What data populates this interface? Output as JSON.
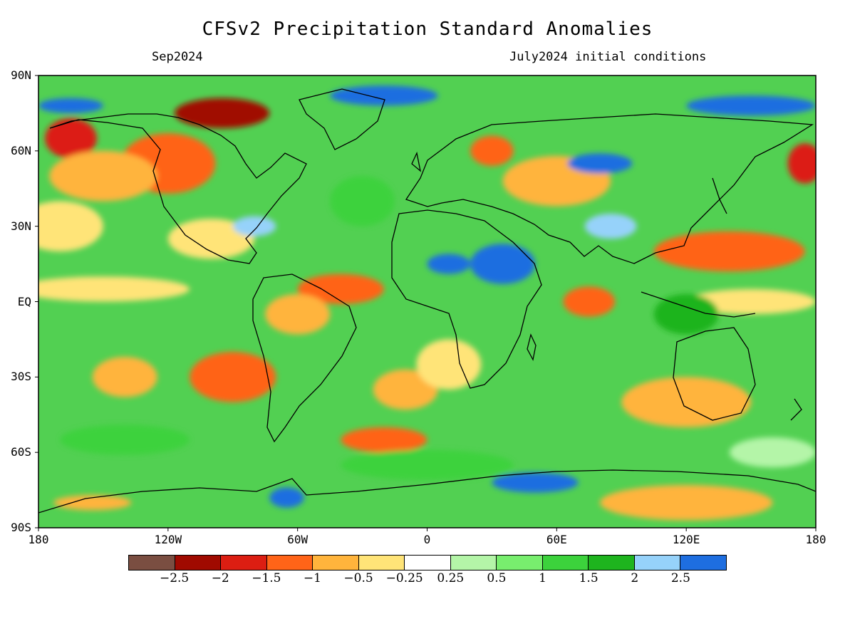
{
  "title": "CFSv2 Precipitation Standard Anomalies",
  "subtitle_left": "Sep2024",
  "subtitle_right": "July2024 initial conditions",
  "map": {
    "projection": "equirectangular",
    "lon_range": [
      -180,
      180
    ],
    "lat_range": [
      -90,
      90
    ],
    "lat_labels": [
      "90N",
      "60N",
      "30N",
      "EQ",
      "30S",
      "60S",
      "90S"
    ],
    "lat_values": [
      90,
      60,
      30,
      0,
      -30,
      -60,
      -90
    ],
    "lon_labels": [
      "180",
      "120W",
      "60W",
      "0",
      "60E",
      "120E",
      "180"
    ],
    "lon_values": [
      -180,
      -120,
      -60,
      0,
      60,
      120,
      180
    ],
    "ocean_background_color": "#52d052",
    "coastline_color": "#000000"
  },
  "colorbar": {
    "colors": [
      "#7a4e41",
      "#a00a00",
      "#dc1e12",
      "#ff6418",
      "#ffb43c",
      "#ffe478",
      "#ffffff",
      "#b4f5a8",
      "#78ee6e",
      "#3cd23c",
      "#1eb41e",
      "#96d2fa",
      "#1e6ee0"
    ],
    "labels": [
      "−2.5",
      "−2",
      "−1.5",
      "−1",
      "−0.5",
      "−0.25",
      "0.25",
      "0.5",
      "1",
      "1.5",
      "2",
      "2.5"
    ]
  },
  "anomaly_regions": [
    {
      "lon": -120,
      "lat": 55,
      "rx": 22,
      "ry": 12,
      "level": -1.5
    },
    {
      "lon": -95,
      "lat": 75,
      "rx": 22,
      "ry": 6,
      "level": -2.5
    },
    {
      "lon": -165,
      "lat": 65,
      "rx": 12,
      "ry": 8,
      "level": -2
    },
    {
      "lon": -150,
      "lat": 50,
      "rx": 25,
      "ry": 10,
      "level": -1
    },
    {
      "lon": -170,
      "lat": 30,
      "rx": 20,
      "ry": 10,
      "level": -0.5
    },
    {
      "lon": -100,
      "lat": 25,
      "rx": 20,
      "ry": 8,
      "level": -0.5
    },
    {
      "lon": -150,
      "lat": 5,
      "rx": 40,
      "ry": 5,
      "level": -0.5
    },
    {
      "lon": -40,
      "lat": 5,
      "rx": 20,
      "ry": 6,
      "level": -1.5
    },
    {
      "lon": -60,
      "lat": -5,
      "rx": 15,
      "ry": 8,
      "level": -1
    },
    {
      "lon": -90,
      "lat": -30,
      "rx": 20,
      "ry": 10,
      "level": -1.5
    },
    {
      "lon": -140,
      "lat": -30,
      "rx": 15,
      "ry": 8,
      "level": -1
    },
    {
      "lon": -10,
      "lat": -35,
      "rx": 15,
      "ry": 8,
      "level": -1
    },
    {
      "lon": -20,
      "lat": -55,
      "rx": 20,
      "ry": 5,
      "level": -1.5
    },
    {
      "lon": 60,
      "lat": 48,
      "rx": 25,
      "ry": 10,
      "level": -1
    },
    {
      "lon": 30,
      "lat": 60,
      "rx": 10,
      "ry": 6,
      "level": -1.5
    },
    {
      "lon": 75,
      "lat": 0,
      "rx": 12,
      "ry": 6,
      "level": -1.5
    },
    {
      "lon": 140,
      "lat": 20,
      "rx": 35,
      "ry": 8,
      "level": -1.5
    },
    {
      "lon": 150,
      "lat": 0,
      "rx": 30,
      "ry": 5,
      "level": -0.5
    },
    {
      "lon": 120,
      "lat": -40,
      "rx": 30,
      "ry": 10,
      "level": -1
    },
    {
      "lon": 120,
      "lat": -80,
      "rx": 40,
      "ry": 7,
      "level": -1
    },
    {
      "lon": -155,
      "lat": -80,
      "rx": 18,
      "ry": 3,
      "level": -1
    },
    {
      "lon": 10,
      "lat": -25,
      "rx": 15,
      "ry": 10,
      "level": -0.5
    },
    {
      "lon": 175,
      "lat": 55,
      "rx": 8,
      "ry": 8,
      "level": -2
    },
    {
      "lon": -165,
      "lat": 78,
      "rx": 15,
      "ry": 3,
      "level": 2.5
    },
    {
      "lon": -20,
      "lat": 82,
      "rx": 25,
      "ry": 4,
      "level": 2.5
    },
    {
      "lon": 150,
      "lat": 78,
      "rx": 30,
      "ry": 4,
      "level": 2.5
    },
    {
      "lon": 35,
      "lat": 15,
      "rx": 15,
      "ry": 8,
      "level": 2.5
    },
    {
      "lon": 10,
      "lat": 15,
      "rx": 10,
      "ry": 4,
      "level": 2.5
    },
    {
      "lon": 80,
      "lat": 55,
      "rx": 15,
      "ry": 4,
      "level": 2.5
    },
    {
      "lon": 85,
      "lat": 30,
      "rx": 12,
      "ry": 5,
      "level": 2
    },
    {
      "lon": 50,
      "lat": -72,
      "rx": 20,
      "ry": 4,
      "level": 2.5
    },
    {
      "lon": -65,
      "lat": -78,
      "rx": 8,
      "ry": 4,
      "level": 2.5
    },
    {
      "lon": -80,
      "lat": 30,
      "rx": 10,
      "ry": 4,
      "level": 2
    },
    {
      "lon": 120,
      "lat": -5,
      "rx": 15,
      "ry": 8,
      "level": 1.5
    },
    {
      "lon": -30,
      "lat": 40,
      "rx": 15,
      "ry": 10,
      "level": 1
    },
    {
      "lon": -140,
      "lat": -55,
      "rx": 30,
      "ry": 6,
      "level": 1
    },
    {
      "lon": 0,
      "lat": -65,
      "rx": 40,
      "ry": 6,
      "level": 1
    },
    {
      "lon": 160,
      "lat": -60,
      "rx": 20,
      "ry": 6,
      "level": 0.25
    }
  ]
}
